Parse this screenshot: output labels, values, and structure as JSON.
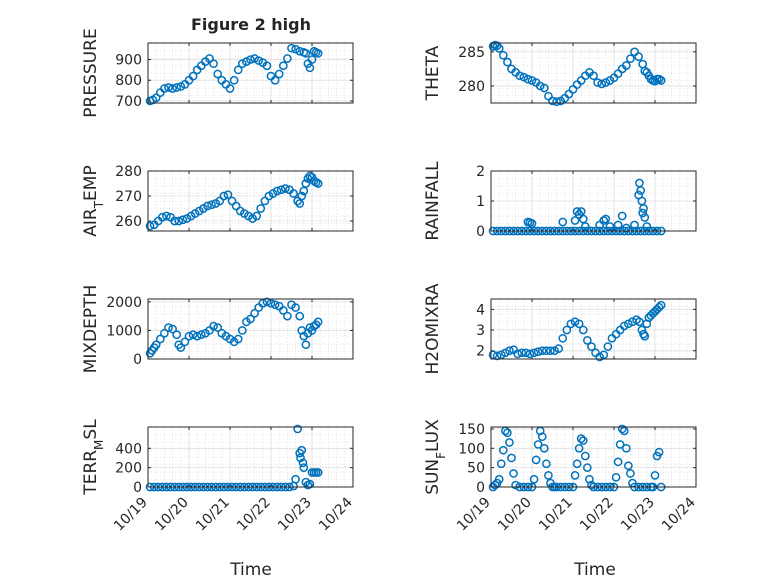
{
  "figure_title": "Figure 2 high",
  "marker_color": "#0072BD",
  "x_ticks": [
    "10/19",
    "10/20",
    "10/21",
    "10/22",
    "10/23",
    "10/24"
  ],
  "x_label": "Time",
  "chart_data": [
    {
      "type": "scatter",
      "ylabel": "PRESSURE",
      "yticks": [
        700,
        800,
        900
      ],
      "ylim": [
        690,
        980
      ],
      "xlim": [
        0,
        5
      ],
      "grid": "on",
      "x": [
        0.05,
        0.12,
        0.2,
        0.3,
        0.4,
        0.5,
        0.6,
        0.7,
        0.8,
        0.9,
        1.0,
        1.1,
        1.2,
        1.3,
        1.4,
        1.5,
        1.6,
        1.7,
        1.8,
        1.9,
        2.0,
        2.1,
        2.2,
        2.3,
        2.4,
        2.5,
        2.6,
        2.7,
        2.8,
        2.9,
        3.0,
        3.1,
        3.2,
        3.3,
        3.4,
        3.5,
        3.6,
        3.7,
        3.8,
        3.85,
        3.9,
        3.95,
        4.0,
        4.05,
        4.1,
        4.15
      ],
      "y": [
        700,
        705,
        715,
        740,
        760,
        765,
        760,
        765,
        770,
        780,
        800,
        820,
        850,
        870,
        890,
        905,
        880,
        830,
        800,
        780,
        760,
        800,
        850,
        880,
        890,
        900,
        905,
        895,
        885,
        870,
        820,
        800,
        830,
        870,
        905,
        955,
        950,
        940,
        935,
        930,
        880,
        860,
        900,
        940,
        935,
        930
      ]
    },
    {
      "type": "scatter",
      "ylabel": "THETA",
      "yticks": [
        280,
        285
      ],
      "ylim": [
        277.5,
        286.3
      ],
      "xlim": [
        0,
        5
      ],
      "grid": "on",
      "x": [
        0.05,
        0.1,
        0.15,
        0.2,
        0.3,
        0.4,
        0.5,
        0.6,
        0.7,
        0.8,
        0.9,
        1.0,
        1.1,
        1.2,
        1.3,
        1.4,
        1.5,
        1.6,
        1.7,
        1.8,
        1.9,
        2.0,
        2.1,
        2.2,
        2.3,
        2.4,
        2.5,
        2.6,
        2.7,
        2.8,
        2.9,
        3.0,
        3.1,
        3.2,
        3.3,
        3.4,
        3.5,
        3.6,
        3.7,
        3.75,
        3.8,
        3.85,
        3.9,
        3.95,
        4.0,
        4.05,
        4.1,
        4.15
      ],
      "y": [
        285.8,
        286,
        285.9,
        285.5,
        284.5,
        283.5,
        282.5,
        282,
        281.5,
        281.3,
        281,
        280.8,
        280.5,
        280,
        279.7,
        278.5,
        277.8,
        277.7,
        277.8,
        278.2,
        278.8,
        279.5,
        280.2,
        280.8,
        281.5,
        282,
        281.5,
        280.5,
        280.3,
        280.5,
        280.8,
        281.2,
        281.8,
        282.5,
        283,
        284,
        285,
        284.3,
        283.2,
        282.2,
        282,
        281.5,
        281,
        280.8,
        280.7,
        281,
        281,
        280.8
      ]
    },
    {
      "type": "scatter",
      "ylabel": "AIR_TEMP",
      "yticks": [
        260,
        270,
        280
      ],
      "ylim": [
        256,
        280
      ],
      "xlim": [
        0,
        5
      ],
      "grid": "on",
      "x": [
        0.05,
        0.15,
        0.25,
        0.35,
        0.45,
        0.55,
        0.65,
        0.75,
        0.85,
        0.95,
        1.05,
        1.15,
        1.25,
        1.35,
        1.45,
        1.55,
        1.65,
        1.75,
        1.85,
        1.95,
        2.05,
        2.15,
        2.25,
        2.35,
        2.45,
        2.55,
        2.65,
        2.75,
        2.85,
        2.95,
        3.05,
        3.15,
        3.25,
        3.35,
        3.45,
        3.55,
        3.65,
        3.7,
        3.75,
        3.8,
        3.85,
        3.9,
        3.95,
        4.0,
        4.05,
        4.1,
        4.15
      ],
      "y": [
        258,
        258.5,
        260,
        261.5,
        262,
        261.5,
        260,
        260,
        260.5,
        261,
        262,
        263,
        264,
        265,
        266,
        266.5,
        267,
        268,
        270,
        270.5,
        268,
        266,
        264,
        263,
        262,
        261,
        262,
        265,
        268,
        270,
        271,
        272,
        272.5,
        273,
        272.5,
        271,
        268,
        267,
        270,
        272,
        275,
        277,
        278,
        277.5,
        276,
        275.5,
        275
      ]
    },
    {
      "type": "scatter",
      "ylabel": "RAINFALL",
      "yticks": [
        0,
        1,
        2
      ],
      "ylim": [
        0,
        2
      ],
      "xlim": [
        0,
        5
      ],
      "grid": "on",
      "x": [
        0.05,
        0.15,
        0.25,
        0.35,
        0.45,
        0.55,
        0.65,
        0.75,
        0.85,
        0.95,
        1.05,
        1.15,
        1.25,
        1.35,
        1.45,
        1.55,
        1.65,
        1.75,
        1.85,
        1.95,
        2.05,
        2.15,
        2.25,
        2.35,
        2.45,
        2.55,
        2.65,
        2.75,
        2.85,
        2.95,
        3.05,
        3.15,
        3.25,
        3.35,
        3.45,
        3.55,
        3.65,
        3.75,
        3.85,
        3.95,
        4.05,
        4.15,
        0.9,
        0.95,
        1.0,
        1.75,
        2.05,
        2.1,
        2.15,
        2.2,
        2.25,
        2.3,
        2.65,
        2.75,
        2.8,
        2.9,
        3.1,
        3.2,
        3.3,
        3.5,
        3.6,
        3.62,
        3.65,
        3.68,
        3.7,
        3.72,
        3.75,
        3.8
      ],
      "y": [
        0,
        0,
        0,
        0,
        0,
        0,
        0,
        0,
        0,
        0,
        0,
        0,
        0,
        0,
        0,
        0,
        0,
        0,
        0,
        0,
        0,
        0,
        0,
        0,
        0,
        0,
        0,
        0,
        0,
        0,
        0,
        0,
        0,
        0,
        0,
        0,
        0,
        0,
        0,
        0,
        0,
        0,
        0.3,
        0.28,
        0.25,
        0.3,
        0.35,
        0.65,
        0.55,
        0.65,
        0.4,
        0.15,
        0.2,
        0.35,
        0.4,
        0.15,
        0.2,
        0.5,
        0.1,
        0.2,
        1.2,
        1.6,
        1.35,
        1.0,
        0.6,
        0.75,
        0.45,
        0.15
      ]
    },
    {
      "type": "scatter",
      "ylabel": "MIXDEPTH",
      "yticks": [
        0,
        1000,
        2000
      ],
      "ylim": [
        0,
        2100
      ],
      "xlim": [
        0,
        5
      ],
      "grid": "on",
      "x": [
        0.05,
        0.1,
        0.15,
        0.2,
        0.3,
        0.4,
        0.5,
        0.6,
        0.7,
        0.75,
        0.8,
        0.9,
        1.0,
        1.1,
        1.2,
        1.3,
        1.4,
        1.5,
        1.6,
        1.7,
        1.8,
        1.9,
        2.0,
        2.1,
        2.2,
        2.3,
        2.4,
        2.5,
        2.6,
        2.7,
        2.8,
        2.9,
        3.0,
        3.1,
        3.2,
        3.3,
        3.4,
        3.5,
        3.6,
        3.7,
        3.75,
        3.8,
        3.85,
        3.9,
        3.95,
        4.0,
        4.05,
        4.1,
        4.15
      ],
      "y": [
        200,
        300,
        400,
        500,
        700,
        900,
        1100,
        1050,
        850,
        500,
        400,
        600,
        800,
        850,
        800,
        850,
        900,
        1000,
        1150,
        1100,
        900,
        800,
        700,
        600,
        700,
        1000,
        1300,
        1400,
        1600,
        1800,
        1950,
        2000,
        1950,
        1900,
        1850,
        1700,
        1500,
        1900,
        1800,
        1500,
        1000,
        800,
        500,
        900,
        1100,
        1000,
        1150,
        1200,
        1300
      ]
    },
    {
      "type": "scatter",
      "ylabel": "H2OMIXRA",
      "yticks": [
        2,
        3,
        4
      ],
      "ylim": [
        1.6,
        4.5
      ],
      "xlim": [
        0,
        5
      ],
      "grid": "on",
      "x": [
        0.05,
        0.15,
        0.25,
        0.35,
        0.45,
        0.55,
        0.65,
        0.75,
        0.85,
        0.95,
        1.05,
        1.15,
        1.25,
        1.35,
        1.45,
        1.55,
        1.65,
        1.75,
        1.85,
        1.95,
        2.05,
        2.15,
        2.25,
        2.35,
        2.45,
        2.55,
        2.65,
        2.75,
        2.85,
        2.95,
        3.05,
        3.15,
        3.25,
        3.35,
        3.45,
        3.55,
        3.62,
        3.68,
        3.72,
        3.75,
        3.8,
        3.85,
        3.9,
        3.95,
        4.0,
        4.05,
        4.1,
        4.15
      ],
      "y": [
        1.8,
        1.75,
        1.8,
        1.9,
        2.0,
        2.05,
        1.85,
        1.9,
        1.9,
        1.85,
        1.9,
        1.95,
        2.0,
        2.0,
        2.0,
        2.0,
        2.1,
        2.6,
        3.0,
        3.3,
        3.4,
        3.3,
        3.0,
        2.5,
        2.2,
        1.9,
        1.7,
        1.8,
        2.2,
        2.6,
        2.8,
        3.0,
        3.2,
        3.3,
        3.4,
        3.5,
        3.4,
        3.0,
        2.8,
        2.7,
        3.3,
        3.6,
        3.7,
        3.8,
        3.9,
        4.0,
        4.1,
        4.2
      ]
    },
    {
      "type": "scatter",
      "ylabel": "TERR_MSL",
      "yticks": [
        0,
        200,
        400
      ],
      "ylim": [
        0,
        620
      ],
      "xlim": [
        0,
        5
      ],
      "grid": "on",
      "x": [
        0.05,
        0.15,
        0.25,
        0.35,
        0.45,
        0.55,
        0.65,
        0.75,
        0.85,
        0.95,
        1.05,
        1.15,
        1.25,
        1.35,
        1.45,
        1.55,
        1.65,
        1.75,
        1.85,
        1.95,
        2.05,
        2.15,
        2.25,
        2.35,
        2.45,
        2.55,
        2.65,
        2.75,
        2.85,
        2.95,
        3.05,
        3.15,
        3.25,
        3.35,
        3.45,
        3.55,
        3.6,
        3.65,
        3.7,
        3.72,
        3.75,
        3.78,
        3.8,
        3.85,
        3.9,
        3.95,
        4.0,
        4.05,
        4.1,
        4.15
      ],
      "y": [
        0,
        0,
        0,
        0,
        0,
        0,
        0,
        0,
        0,
        0,
        0,
        0,
        0,
        0,
        0,
        0,
        0,
        0,
        0,
        0,
        0,
        0,
        0,
        0,
        0,
        0,
        0,
        0,
        0,
        0,
        0,
        0,
        0,
        0,
        0,
        10,
        80,
        600,
        350,
        300,
        380,
        250,
        200,
        50,
        20,
        30,
        150,
        150,
        150,
        150
      ]
    },
    {
      "type": "scatter",
      "ylabel": "SUN_FLUX",
      "yticks": [
        0,
        50,
        100,
        150
      ],
      "ylim": [
        0,
        155
      ],
      "xlim": [
        0,
        5
      ],
      "grid": "on",
      "x": [
        0.05,
        0.1,
        0.15,
        0.2,
        0.25,
        0.3,
        0.35,
        0.4,
        0.45,
        0.5,
        0.55,
        0.6,
        0.7,
        0.8,
        0.9,
        1.0,
        1.05,
        1.1,
        1.15,
        1.2,
        1.25,
        1.3,
        1.35,
        1.4,
        1.45,
        1.5,
        1.55,
        1.6,
        1.7,
        1.8,
        1.9,
        2.0,
        2.05,
        2.1,
        2.15,
        2.2,
        2.25,
        2.3,
        2.35,
        2.4,
        2.45,
        2.5,
        2.6,
        2.7,
        2.8,
        2.9,
        3.0,
        3.05,
        3.1,
        3.15,
        3.2,
        3.25,
        3.3,
        3.35,
        3.4,
        3.45,
        3.5,
        3.6,
        3.7,
        3.8,
        3.9,
        3.95,
        4.0,
        4.05,
        4.1,
        4.15
      ],
      "y": [
        0,
        5,
        10,
        20,
        60,
        95,
        145,
        140,
        115,
        75,
        35,
        5,
        0,
        0,
        0,
        0,
        20,
        70,
        110,
        145,
        130,
        100,
        60,
        30,
        10,
        0,
        0,
        0,
        0,
        0,
        0,
        0,
        30,
        60,
        100,
        125,
        120,
        80,
        50,
        20,
        5,
        0,
        0,
        0,
        0,
        0,
        0,
        25,
        65,
        110,
        150,
        145,
        100,
        55,
        35,
        10,
        0,
        0,
        0,
        0,
        0,
        0,
        30,
        80,
        90,
        0
      ]
    }
  ]
}
